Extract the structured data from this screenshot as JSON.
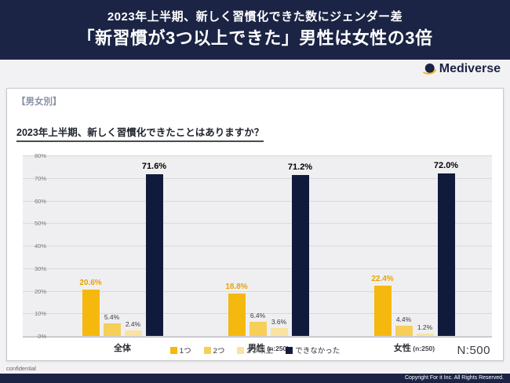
{
  "colors": {
    "header_bg": "#1B2444",
    "accent_yellow": "#F5B80F"
  },
  "header": {
    "line1": "2023年上半期、新しく習慣化できた数にジェンダー差",
    "line2": "「新習慣が3つ以上できた」男性は女性の3倍"
  },
  "logo": {
    "text": "Mediverse"
  },
  "panel": {
    "tag": "【男女別】",
    "question": "2023年上半期、新しく習慣化できたことはありますか？",
    "n_label": "N:500"
  },
  "chart_data": {
    "type": "bar",
    "title": "2023年上半期、新しく習慣化できたことはありますか？",
    "categories": [
      "全体",
      "男性",
      "女性"
    ],
    "category_notes": [
      "",
      "(n:250)",
      "(n:250)"
    ],
    "series": [
      {
        "name": "1つ",
        "color": "#F5B80F",
        "values": [
          20.6,
          18.8,
          22.4
        ]
      },
      {
        "name": "2つ",
        "color": "#F7CE58",
        "values": [
          5.4,
          6.4,
          4.4
        ]
      },
      {
        "name": "3つ以上",
        "color": "#FAE3A0",
        "values": [
          2.4,
          3.6,
          1.2
        ]
      },
      {
        "name": "できなかった",
        "color": "#101B3C",
        "values": [
          71.6,
          71.2,
          72.0
        ]
      }
    ],
    "ylim": [
      0,
      80
    ],
    "ytick_step": 10,
    "ytick_suffix": "%",
    "grid": true,
    "legend_position": "bottom"
  },
  "footer": {
    "confidential": "confidential",
    "copyright": "Copyright For it Inc. All Rights Reserved."
  }
}
